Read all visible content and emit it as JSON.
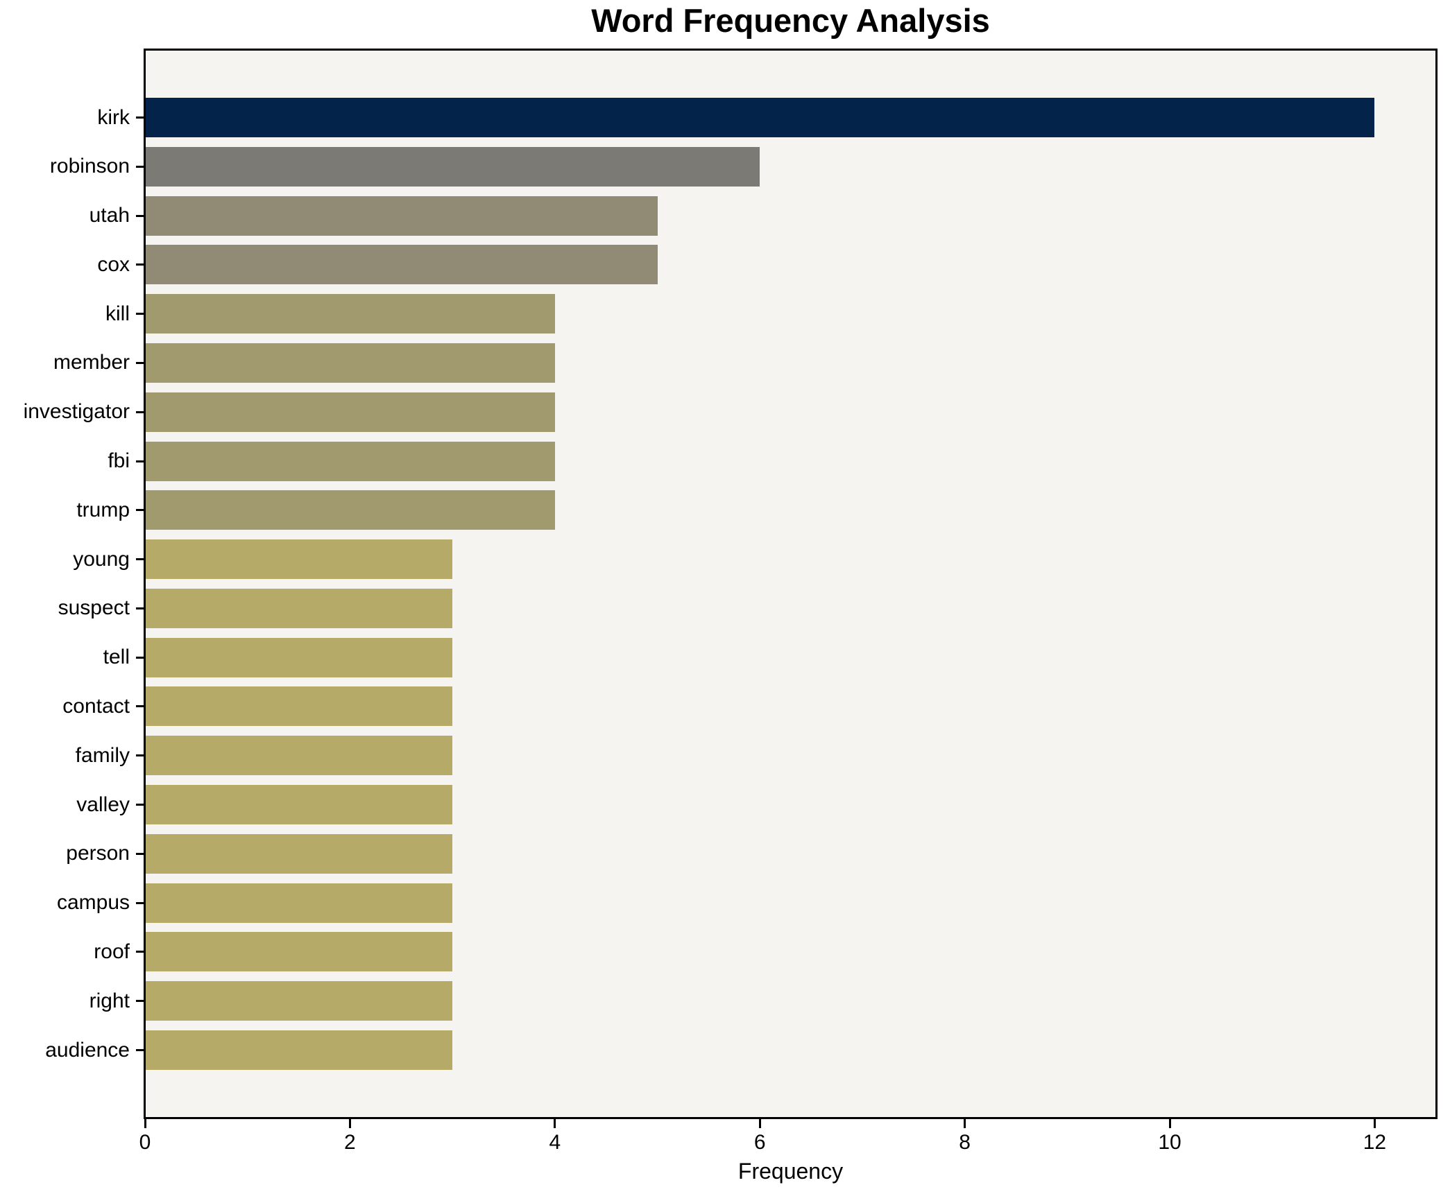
{
  "chart_data": {
    "type": "bar",
    "orientation": "horizontal",
    "title": "Word Frequency Analysis",
    "xlabel": "Frequency",
    "ylabel": "",
    "categories": [
      "kirk",
      "robinson",
      "utah",
      "cox",
      "kill",
      "member",
      "investigator",
      "fbi",
      "trump",
      "young",
      "suspect",
      "tell",
      "contact",
      "family",
      "valley",
      "person",
      "campus",
      "roof",
      "right",
      "audience"
    ],
    "values": [
      12,
      6,
      5,
      5,
      4,
      4,
      4,
      4,
      4,
      3,
      3,
      3,
      3,
      3,
      3,
      3,
      3,
      3,
      3,
      3
    ],
    "bar_colors": [
      "#03234b",
      "#7b7a75",
      "#918a74",
      "#918a74",
      "#a29a6f",
      "#a29a6f",
      "#a29a6f",
      "#a29a6f",
      "#a29a6f",
      "#b6aa68",
      "#b6aa68",
      "#b6aa68",
      "#b6aa68",
      "#b6aa68",
      "#b6aa68",
      "#b6aa68",
      "#b6aa68",
      "#b6aa68",
      "#b6aa68",
      "#b6aa68"
    ],
    "xlim": [
      0,
      12.6
    ],
    "xticks": [
      0,
      2,
      4,
      6,
      8,
      10,
      12
    ],
    "xtick_labels": [
      "0",
      "2",
      "4",
      "6",
      "8",
      "10",
      "12"
    ],
    "grid": false,
    "legend_position": "none",
    "plot_background": "#f5f4f1",
    "figure_background": "#ffffff",
    "text_color": "#000000",
    "spine_color": "#000000"
  }
}
